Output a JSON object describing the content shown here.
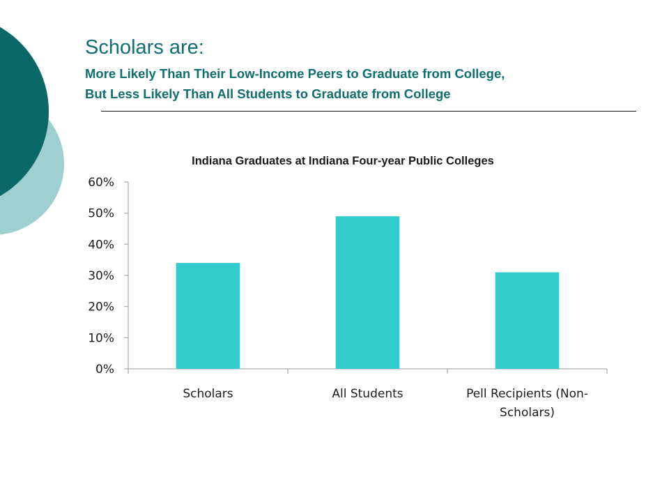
{
  "slide": {
    "title": "Scholars are:",
    "subtitle_line1": "More Likely Than Their Low-Income Peers to Graduate from College,",
    "subtitle_line2": "But Less Likely Than All Students to Graduate from College"
  },
  "colors": {
    "accent_dark": "#0a6966",
    "accent_light": "#9fcfd0",
    "heading": "#0f6e6e",
    "bar": "#33cccc"
  },
  "chart_data": {
    "type": "bar",
    "title": "Indiana Graduates at Indiana Four-year Public Colleges",
    "xlabel": "",
    "ylabel": "",
    "categories": [
      [
        "Scholars"
      ],
      [
        "All Students"
      ],
      [
        "Pell Recipients (Non-",
        "Scholars)"
      ]
    ],
    "values": [
      34,
      49,
      31
    ],
    "ylim": [
      0,
      60
    ],
    "yticks": [
      0,
      10,
      20,
      30,
      40,
      50,
      60
    ],
    "ytick_labels": [
      "0%",
      "10%",
      "20%",
      "30%",
      "40%",
      "50%",
      "60%"
    ],
    "grid": false,
    "legend": "none"
  }
}
